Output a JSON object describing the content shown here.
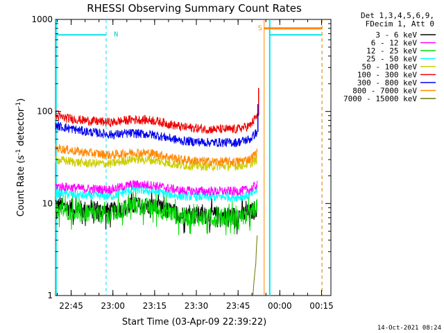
{
  "chart_data": {
    "type": "line",
    "title": "RHESSI Observing Summary Count Rates",
    "xlabel": "Start Time (03-Apr-09 22:39:22)",
    "ylabel_main": "Count Rate (s",
    "ylabel_sup1": "-1",
    "ylabel_mid": " detector",
    "ylabel_sup2": "-1",
    "ylabel_end": ")",
    "yscale": "log",
    "ylim": [
      1,
      1000
    ],
    "xlim_minutes": [
      0,
      99
    ],
    "x_tick_labels": [
      "22:45",
      "23:00",
      "23:15",
      "23:30",
      "23:45",
      "00:00",
      "00:15"
    ],
    "x_tick_minutes": [
      5.63,
      20.63,
      35.63,
      50.63,
      65.63,
      80.63,
      95.63
    ],
    "y_tick_labels": [
      "1",
      "10",
      "100",
      "1000"
    ],
    "y_tick_values": [
      1,
      10,
      100,
      1000
    ],
    "legend_header": [
      "Det 1,3,4,5,6,9,",
      "FDecim 1, Att 0"
    ],
    "legend_position": "right-outside",
    "series": [
      {
        "name": "3 - 6 keV",
        "color": "#000000",
        "x": [
          0,
          10,
          20,
          28,
          35,
          45,
          55,
          65,
          70,
          72.5
        ],
        "values": [
          9.5,
          8.6,
          8.2,
          9.5,
          9.2,
          7.6,
          7.4,
          7.4,
          8.0,
          9
        ]
      },
      {
        "name": "6 - 12 keV",
        "color": "#ff00ff",
        "x": [
          0,
          10,
          20,
          28,
          35,
          45,
          55,
          65,
          70,
          72.5
        ],
        "values": [
          15.5,
          14.5,
          14.2,
          16.2,
          15.8,
          13.8,
          13.6,
          13.6,
          14.2,
          16
        ]
      },
      {
        "name": "12 - 25 keV",
        "color": "#00dd00",
        "x": [
          0,
          10,
          20,
          28,
          35,
          45,
          55,
          65,
          70,
          72.5
        ],
        "values": [
          8.6,
          7.8,
          7.4,
          9.6,
          9.0,
          7.2,
          7.0,
          7.0,
          7.4,
          9
        ]
      },
      {
        "name": "25 - 50 keV",
        "color": "#00ffff",
        "x": [
          0,
          10,
          20,
          28,
          35,
          45,
          55,
          65,
          70,
          72.5
        ],
        "values": [
          13.0,
          12.2,
          12.0,
          14.2,
          13.6,
          12.0,
          11.8,
          11.8,
          12.2,
          14
        ]
      },
      {
        "name": "50 - 100 keV",
        "color": "#cccc00",
        "x": [
          0,
          10,
          20,
          28,
          35,
          45,
          55,
          65,
          70,
          72.5
        ],
        "values": [
          30.0,
          27.5,
          27.0,
          30.5,
          29.5,
          26.0,
          25.5,
          25.5,
          27.0,
          30
        ]
      },
      {
        "name": "100 - 300 keV",
        "color": "#ee0000",
        "x": [
          0,
          10,
          20,
          28,
          35,
          45,
          55,
          65,
          70,
          72.5
        ],
        "values": [
          88.0,
          80.0,
          76.0,
          82.0,
          80.0,
          68.0,
          64.0,
          64.0,
          70.0,
          90
        ]
      },
      {
        "name": "300 - 800 keV",
        "color": "#0000ee",
        "x": [
          0,
          10,
          20,
          28,
          35,
          45,
          55,
          65,
          70,
          72.5
        ],
        "values": [
          70.0,
          61.0,
          56.0,
          58.0,
          56.0,
          48.0,
          46.0,
          46.0,
          50.0,
          60
        ]
      },
      {
        "name": "800 - 7000 keV",
        "color": "#ff8800",
        "x": [
          0,
          10,
          20,
          28,
          35,
          45,
          55,
          65,
          70,
          72.5
        ],
        "values": [
          40.0,
          36.0,
          33.5,
          36.0,
          35.0,
          30.0,
          28.5,
          28.5,
          30.5,
          36
        ]
      },
      {
        "name": "7000 - 15000 keV",
        "color": "#667700",
        "x": [
          71,
          72,
          72.5
        ],
        "values": [
          1.0,
          2.2,
          4.5
        ]
      }
    ],
    "spike": {
      "x": 73.0,
      "values_red": [
        90,
        180
      ],
      "values_blue": [
        60,
        120
      ]
    },
    "annotations": [
      {
        "text": "N",
        "color": "#00cccc",
        "x": 21.0,
        "y": 700
      },
      {
        "text": "S",
        "color": "#ff8800",
        "x": 72.8,
        "y": 820
      }
    ],
    "cyan_segments": [
      {
        "x0": 0.2,
        "x1": 18.2,
        "y": 680,
        "solid_line_x": 0.2,
        "dashed_line_x": 18.2
      },
      {
        "x0": 77.0,
        "x1": 95.8,
        "y": 680,
        "solid_line_x": 77.0,
        "dashed_line_x": 95.8
      }
    ],
    "orange_segment": {
      "x0": 75.0,
      "x1": 95.8,
      "y": 800,
      "line_x": 75.0,
      "dashed_line_x": 95.8
    },
    "footer_date": "14-Oct-2021 08:24"
  }
}
